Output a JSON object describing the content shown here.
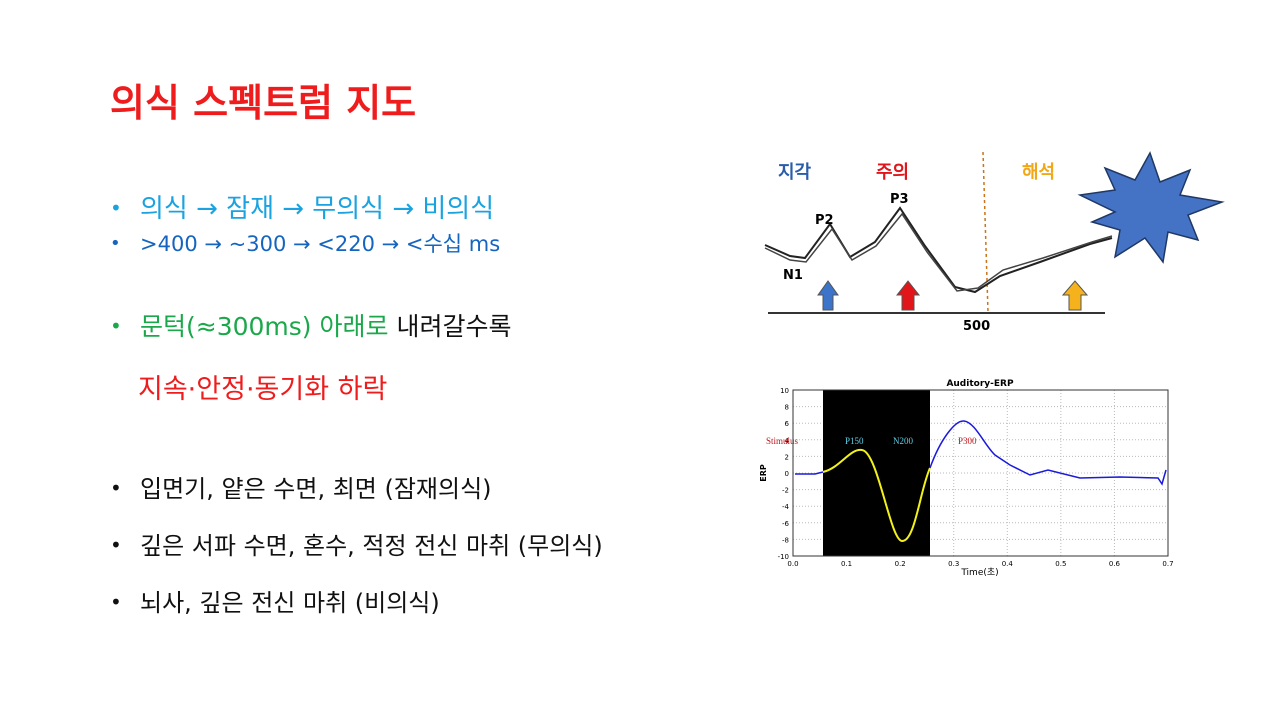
{
  "title": "의식 스펙트럼 지도",
  "bullets": [
    {
      "text": "의식 → 잠재 → 무의식 → 비의식"
    },
    {
      "text": ">400 → ~300 → <220 → <수십 ms"
    },
    {
      "parts": [
        "문턱(≈300ms) 아래로",
        "내려갈수록"
      ]
    },
    {
      "text": "지속·안정·동기화 하락"
    },
    {
      "text": "입면기, 얕은 수면, 최면 (잠재의식)"
    },
    {
      "text": "깊은 서파 수면, 혼수, 적정 전신 마취  (무의식)"
    },
    {
      "text": "뇌사, 깊은 전신 마취 (비의식)"
    }
  ],
  "figure_top": {
    "stages": [
      "지각",
      "주의",
      "해석"
    ],
    "peaks": [
      "P2",
      "P3",
      "N1"
    ],
    "x_label": "500"
  },
  "figure_bottom": {
    "title": "Auditory-ERP",
    "y_label": "ERP",
    "x_label": "Time(초)",
    "yticks": [
      "10",
      "8",
      "6",
      "4",
      "2",
      "0",
      "-2",
      "-4",
      "-6",
      "-8",
      "-10"
    ],
    "xticks": [
      "0.0",
      "0.1",
      "0.2",
      "0.3",
      "0.4",
      "0.5",
      "0.6",
      "0.7"
    ],
    "markers": [
      "Stimulus",
      "P150",
      "N200",
      "P300"
    ]
  }
}
